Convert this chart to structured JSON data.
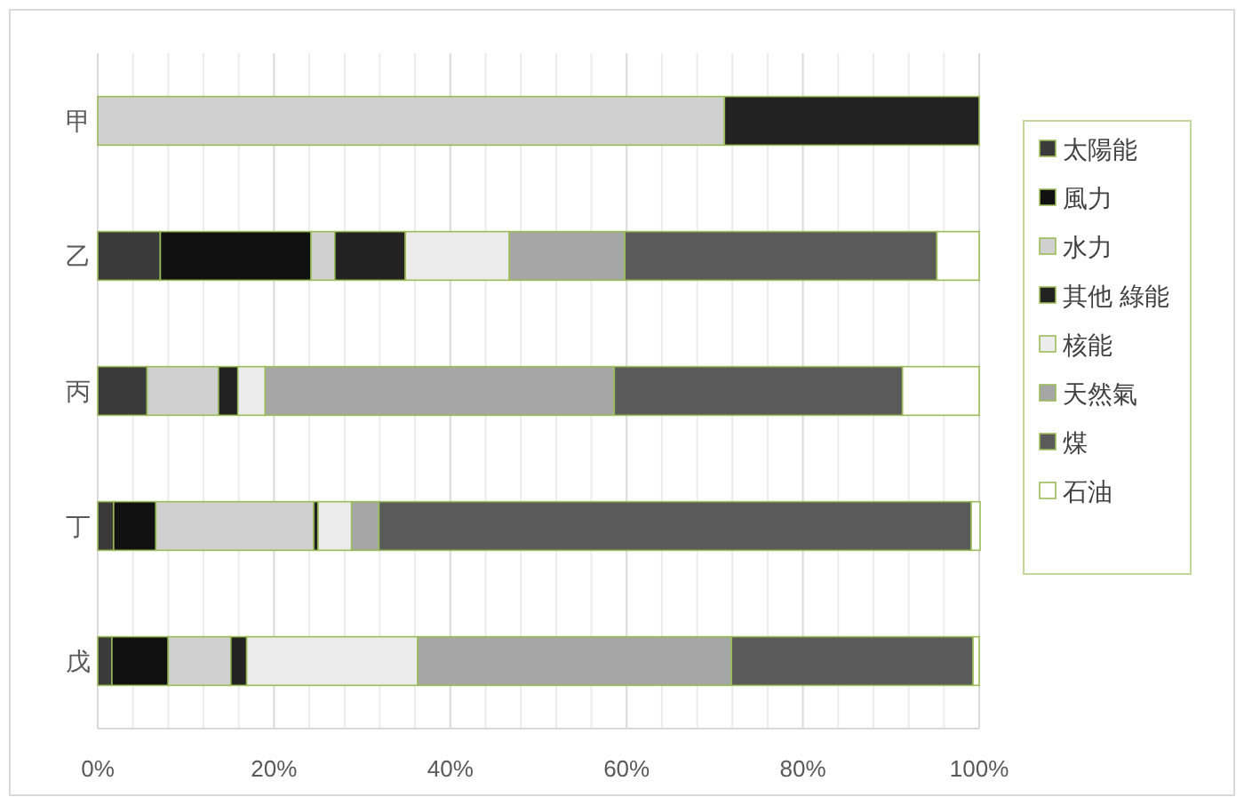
{
  "chart_data": {
    "type": "bar",
    "orientation": "horizontal",
    "stacked": true,
    "categories": [
      "甲",
      "乙",
      "丙",
      "丁",
      "戊"
    ],
    "series": [
      {
        "name": "太陽能",
        "color": "#3a3a3a",
        "values": [
          0,
          7.1,
          5.6,
          1.8,
          1.6
        ]
      },
      {
        "name": "風力",
        "color": "#111111",
        "values": [
          0,
          17.1,
          0,
          4.8,
          6.4
        ]
      },
      {
        "name": "水力",
        "color": "#d0d0d0",
        "values": [
          71.1,
          2.7,
          8.1,
          17.9,
          7.1
        ]
      },
      {
        "name": "其他 綠能",
        "color": "#222222",
        "values": [
          28.9,
          8.0,
          2.2,
          0.5,
          1.8
        ]
      },
      {
        "name": "核能",
        "color": "#ececec",
        "values": [
          0,
          11.8,
          3.1,
          3.8,
          19.4
        ]
      },
      {
        "name": "天然氣",
        "color": "#a6a6a6",
        "values": [
          0,
          13.1,
          39.6,
          3.1,
          35.6
        ]
      },
      {
        "name": "煤",
        "color": "#5a5a5a",
        "values": [
          0,
          35.4,
          32.7,
          67.2,
          27.4
        ]
      },
      {
        "name": "石油",
        "color": "#ffffff",
        "values": [
          0,
          4.8,
          8.7,
          1.0,
          0.7
        ]
      }
    ],
    "xlim": [
      0,
      100
    ],
    "xticks": [
      {
        "value": 0,
        "label": "0%"
      },
      {
        "value": 4,
        "label": null
      },
      {
        "value": 8,
        "label": null
      },
      {
        "value": 12,
        "label": null
      },
      {
        "value": 16,
        "label": null
      },
      {
        "value": 20,
        "label": "20%"
      },
      {
        "value": 24,
        "label": null
      },
      {
        "value": 28,
        "label": null
      },
      {
        "value": 32,
        "label": null
      },
      {
        "value": 36,
        "label": null
      },
      {
        "value": 40,
        "label": "40%"
      },
      {
        "value": 44,
        "label": null
      },
      {
        "value": 48,
        "label": null
      },
      {
        "value": 52,
        "label": null
      },
      {
        "value": 56,
        "label": null
      },
      {
        "value": 60,
        "label": "60%"
      },
      {
        "value": 64,
        "label": null
      },
      {
        "value": 68,
        "label": null
      },
      {
        "value": 72,
        "label": null
      },
      {
        "value": 76,
        "label": null
      },
      {
        "value": 80,
        "label": "80%"
      },
      {
        "value": 84,
        "label": null
      },
      {
        "value": 88,
        "label": null
      },
      {
        "value": 92,
        "label": null
      },
      {
        "value": 96,
        "label": null
      },
      {
        "value": 100,
        "label": "100%"
      }
    ],
    "grid": "x",
    "legend": "right"
  }
}
